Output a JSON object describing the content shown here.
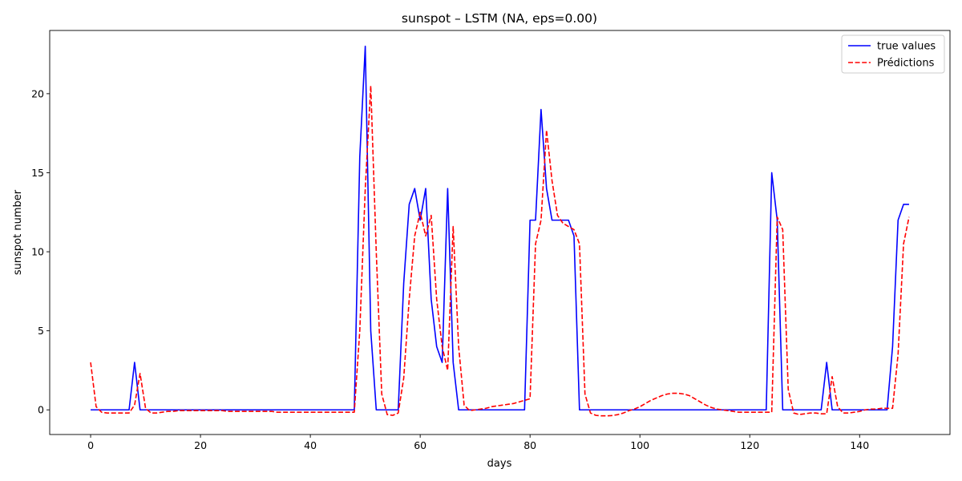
{
  "chart_data": {
    "type": "line",
    "title": "sunspot – LSTM (NA, eps=0.00)",
    "xlabel": "days",
    "ylabel": "sunspot number",
    "xlim": [
      -7.45,
      156.45
    ],
    "ylim": [
      -1.56,
      24.0
    ],
    "xticks": [
      0,
      20,
      40,
      60,
      80,
      100,
      120,
      140
    ],
    "yticks": [
      0,
      5,
      10,
      15,
      20
    ],
    "grid": false,
    "legend": "top-right",
    "x": [
      0,
      1,
      2,
      3,
      4,
      5,
      6,
      7,
      8,
      9,
      10,
      11,
      12,
      13,
      14,
      15,
      16,
      17,
      18,
      19,
      20,
      21,
      22,
      23,
      24,
      25,
      26,
      27,
      28,
      29,
      30,
      31,
      32,
      33,
      34,
      35,
      36,
      37,
      38,
      39,
      40,
      41,
      42,
      43,
      44,
      45,
      46,
      47,
      48,
      49,
      50,
      51,
      52,
      53,
      54,
      55,
      56,
      57,
      58,
      59,
      60,
      61,
      62,
      63,
      64,
      65,
      66,
      67,
      68,
      69,
      70,
      71,
      72,
      73,
      74,
      75,
      76,
      77,
      78,
      79,
      80,
      81,
      82,
      83,
      84,
      85,
      86,
      87,
      88,
      89,
      90,
      91,
      92,
      93,
      94,
      95,
      96,
      97,
      98,
      99,
      100,
      101,
      102,
      103,
      104,
      105,
      106,
      107,
      108,
      109,
      110,
      111,
      112,
      113,
      114,
      115,
      116,
      117,
      118,
      119,
      120,
      121,
      122,
      123,
      124,
      125,
      126,
      127,
      128,
      129,
      130,
      131,
      132,
      133,
      134,
      135,
      136,
      137,
      138,
      139,
      140,
      141,
      142,
      143,
      144,
      145,
      146,
      147,
      148,
      149
    ],
    "series": [
      {
        "name": "true values",
        "color": "#0000ff",
        "style": "solid",
        "values": [
          0,
          0,
          0,
          0,
          0,
          0,
          0,
          0,
          3,
          0,
          0,
          0,
          0,
          0,
          0,
          0,
          0,
          0,
          0,
          0,
          0,
          0,
          0,
          0,
          0,
          0,
          0,
          0,
          0,
          0,
          0,
          0,
          0,
          0,
          0,
          0,
          0,
          0,
          0,
          0,
          0,
          0,
          0,
          0,
          0,
          0,
          0,
          0,
          0,
          16,
          23,
          5,
          0,
          0,
          0,
          0,
          0,
          8,
          13,
          14,
          12,
          14,
          7,
          4,
          3,
          14,
          3,
          0,
          0,
          0,
          0,
          0,
          0,
          0,
          0,
          0,
          0,
          0,
          0,
          0,
          12,
          12,
          19,
          14,
          12,
          12,
          12,
          12,
          11,
          0,
          0,
          0,
          0,
          0,
          0,
          0,
          0,
          0,
          0,
          0,
          0,
          0,
          0,
          0,
          0,
          0,
          0,
          0,
          0,
          0,
          0,
          0,
          0,
          0,
          0,
          0,
          0,
          0,
          0,
          0,
          0,
          0,
          0,
          0,
          15,
          12,
          0,
          0,
          0,
          0,
          0,
          0,
          0,
          0,
          3,
          0,
          0,
          0,
          0,
          0,
          0,
          0,
          0,
          0,
          0,
          0,
          4,
          12,
          13,
          13
        ]
      },
      {
        "name": "Prédictions",
        "color": "#ff0000",
        "style": "dashed",
        "values": [
          3.0,
          0.2,
          -0.15,
          -0.2,
          -0.2,
          -0.2,
          -0.2,
          -0.2,
          0.3,
          2.3,
          0.1,
          -0.2,
          -0.2,
          -0.15,
          -0.1,
          -0.1,
          -0.05,
          -0.05,
          -0.05,
          -0.05,
          -0.05,
          -0.05,
          -0.05,
          -0.05,
          -0.05,
          -0.1,
          -0.1,
          -0.1,
          -0.1,
          -0.1,
          -0.1,
          -0.1,
          -0.1,
          -0.1,
          -0.15,
          -0.15,
          -0.15,
          -0.15,
          -0.15,
          -0.15,
          -0.15,
          -0.15,
          -0.15,
          -0.15,
          -0.15,
          -0.15,
          -0.15,
          -0.15,
          -0.15,
          5.0,
          14.0,
          20.5,
          10.0,
          1.0,
          -0.3,
          -0.35,
          -0.2,
          2.0,
          7.0,
          11.0,
          12.5,
          11.0,
          12.3,
          7.0,
          4.0,
          2.5,
          11.6,
          4.0,
          0.3,
          -0.05,
          0.0,
          0.05,
          0.1,
          0.2,
          0.25,
          0.3,
          0.35,
          0.4,
          0.5,
          0.6,
          0.7,
          10.5,
          12.0,
          17.7,
          14.5,
          12.3,
          11.8,
          11.6,
          11.4,
          10.5,
          1.0,
          -0.2,
          -0.35,
          -0.38,
          -0.38,
          -0.36,
          -0.3,
          -0.2,
          -0.05,
          0.05,
          0.2,
          0.4,
          0.6,
          0.75,
          0.9,
          1.0,
          1.05,
          1.05,
          1.0,
          0.9,
          0.7,
          0.5,
          0.3,
          0.15,
          0.05,
          0.0,
          -0.05,
          -0.1,
          -0.15,
          -0.15,
          -0.15,
          -0.15,
          -0.15,
          -0.15,
          -0.15,
          12.2,
          11.4,
          1.3,
          -0.2,
          -0.3,
          -0.25,
          -0.2,
          -0.2,
          -0.25,
          -0.25,
          2.1,
          0.2,
          -0.2,
          -0.2,
          -0.15,
          -0.1,
          0.0,
          0.05,
          0.05,
          0.1,
          0.1,
          0.1,
          3.5,
          10.5,
          12.2
        ]
      }
    ]
  }
}
